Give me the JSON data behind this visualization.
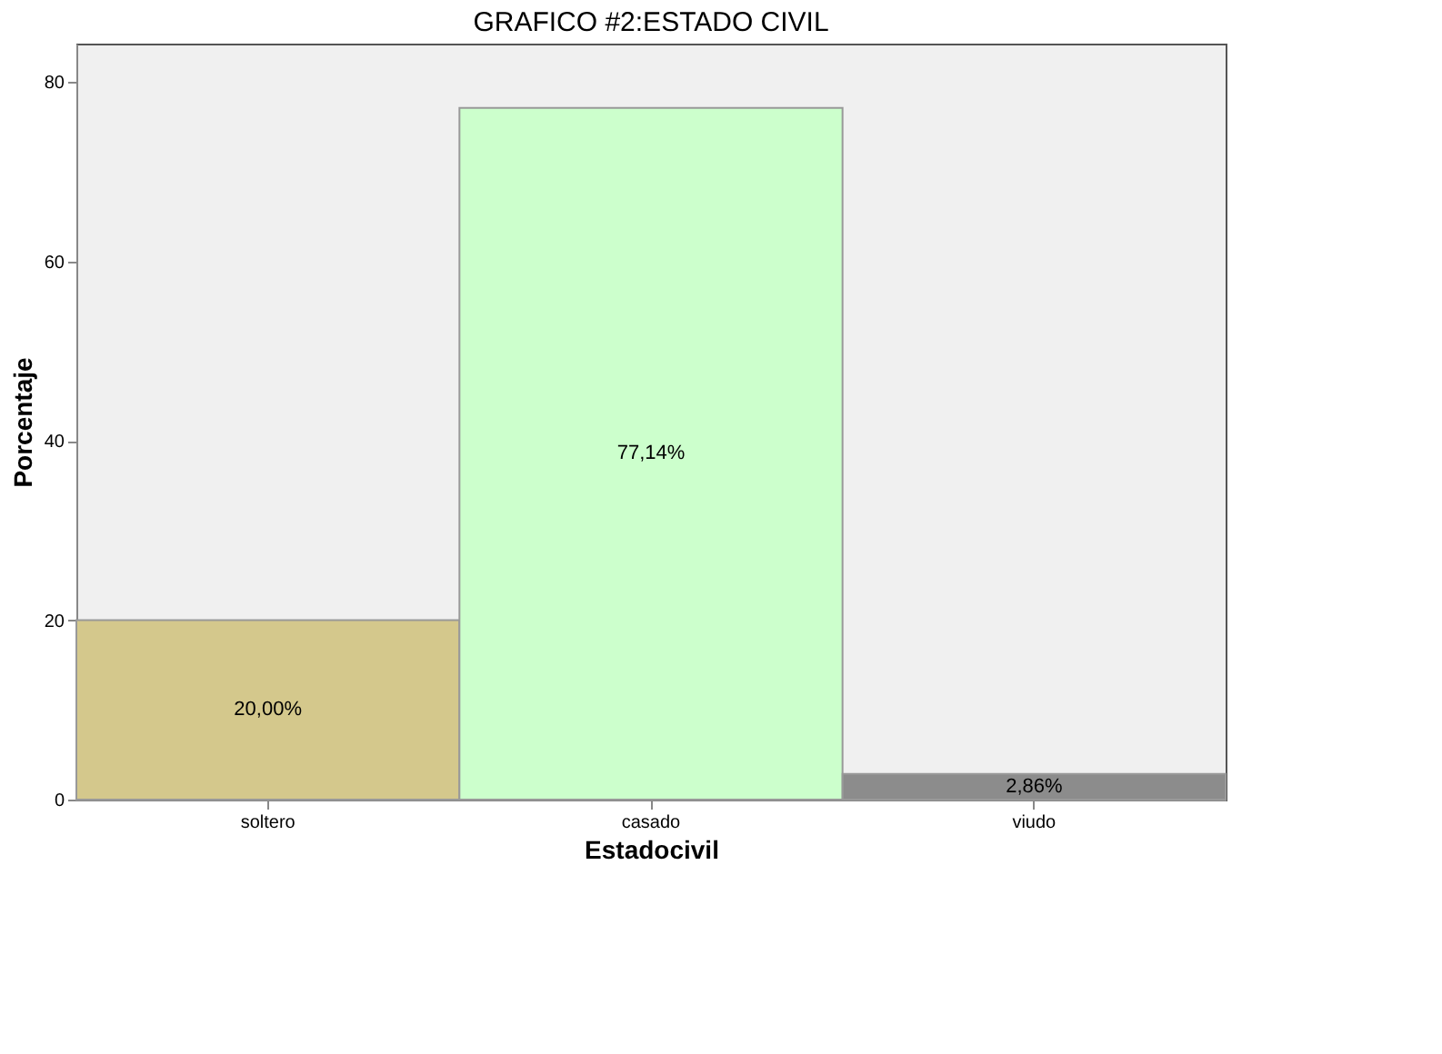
{
  "chart_data": {
    "type": "bar",
    "title": "GRAFICO #2:ESTADO CIVIL",
    "xlabel": "Estadocivil",
    "ylabel": "Porcentaje",
    "categories": [
      "soltero",
      "casado",
      "viudo"
    ],
    "values": [
      20.0,
      77.14,
      2.86
    ],
    "colors": [
      "#d4c88c",
      "#ccffcc",
      "#8c8c8c"
    ],
    "value_labels": [
      "20,00%",
      "77,14%",
      "2,86%"
    ],
    "ylim": [
      0,
      84.3
    ],
    "yticks": [
      0,
      20,
      40,
      60,
      80
    ],
    "grid": false
  }
}
